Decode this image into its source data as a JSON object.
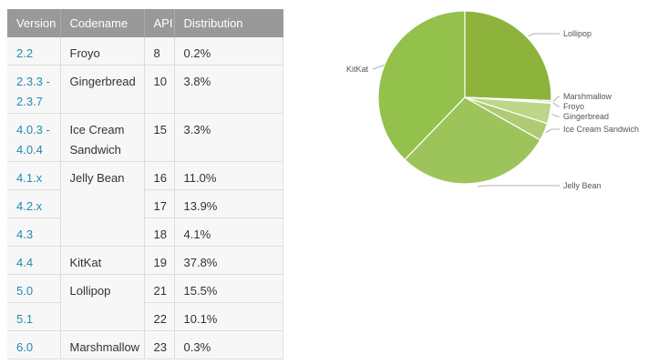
{
  "table": {
    "headers": [
      "Version",
      "Codename",
      "API",
      "Distribution"
    ],
    "rows": [
      {
        "version": "2.2",
        "codename": "Froyo",
        "api": "8",
        "distribution": "0.2%"
      },
      {
        "version": "2.3.3 -\n2.3.7",
        "codename": "Gingerbread",
        "api": "10",
        "distribution": "3.8%"
      },
      {
        "version": "4.0.3 -\n4.0.4",
        "codename": "Ice Cream\nSandwich",
        "api": "15",
        "distribution": "3.3%"
      },
      {
        "version": "4.1.x",
        "codename": "Jelly Bean",
        "api": "16",
        "distribution": "11.0%"
      },
      {
        "version": "4.2.x",
        "codename": "",
        "api": "17",
        "distribution": "13.9%"
      },
      {
        "version": "4.3",
        "codename": "",
        "api": "18",
        "distribution": "4.1%"
      },
      {
        "version": "4.4",
        "codename": "KitKat",
        "api": "19",
        "distribution": "37.8%"
      },
      {
        "version": "5.0",
        "codename": "Lollipop",
        "api": "21",
        "distribution": "15.5%"
      },
      {
        "version": "5.1",
        "codename": "",
        "api": "22",
        "distribution": "10.1%"
      },
      {
        "version": "6.0",
        "codename": "Marshmallow",
        "api": "23",
        "distribution": "0.3%"
      }
    ]
  },
  "chart_data": {
    "type": "pie",
    "title": "",
    "slices": [
      {
        "label": "Lollipop",
        "value": 25.6,
        "color": "#8db33c"
      },
      {
        "label": "Marshmallow",
        "value": 0.3,
        "color": "#b4d27a"
      },
      {
        "label": "Froyo",
        "value": 0.2,
        "color": "#c9de9e"
      },
      {
        "label": "Gingerbread",
        "value": 3.8,
        "color": "#bcd68a"
      },
      {
        "label": "Ice Cream Sandwich",
        "value": 3.3,
        "color": "#aecb73"
      },
      {
        "label": "Jelly Bean",
        "value": 29.0,
        "color": "#9dc45a"
      },
      {
        "label": "KitKat",
        "value": 37.8,
        "color": "#94c04c"
      }
    ],
    "start_angle_deg": 0,
    "direction": "clockwise",
    "label_positions": {
      "Lollipop": "right",
      "Marshmallow": "right",
      "Froyo": "right",
      "Gingerbread": "right",
      "Ice Cream Sandwich": "right",
      "Jelly Bean": "bottom-right",
      "KitKat": "left"
    }
  }
}
